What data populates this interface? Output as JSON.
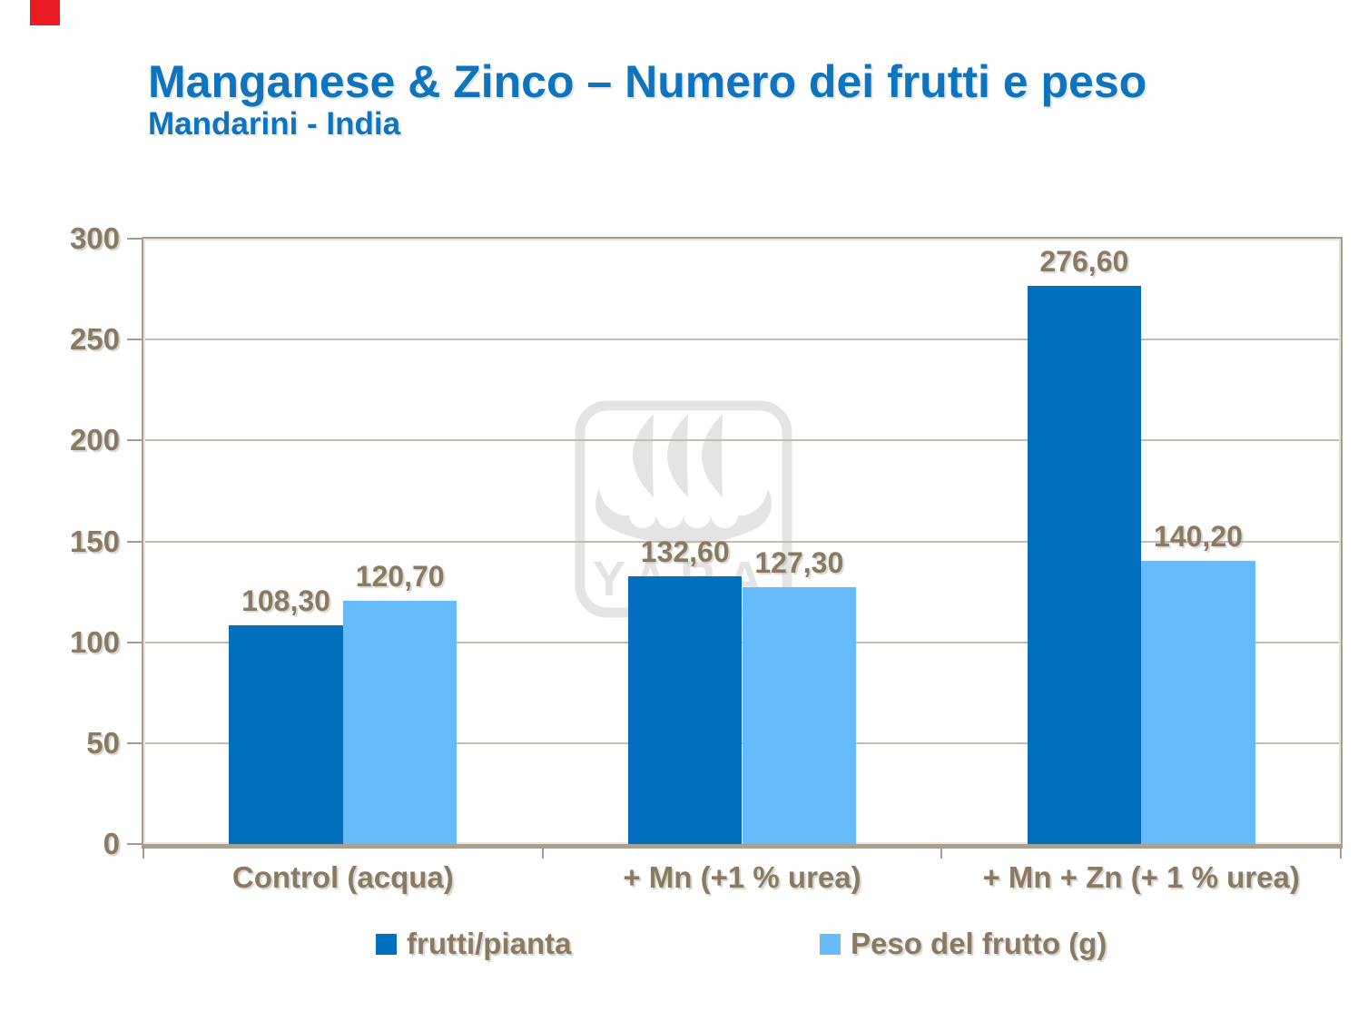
{
  "slide": {
    "title": "Manganese & Zinco – Numero dei frutti e peso",
    "subtitle": "Mandarini - India",
    "title_color": "#0e74be",
    "corner_tag_color": "#ec1c24",
    "text_color": "#8b7a62"
  },
  "watermark": {
    "name": "yara-logo",
    "text": "YARA",
    "color": "#e4e4e4"
  },
  "chart_data": {
    "type": "bar",
    "categories": [
      "Control (acqua)",
      "+ Mn (+1 % urea)",
      "+ Mn + Zn (+ 1 % urea)"
    ],
    "series": [
      {
        "name": "frutti/pianta",
        "color": "#0070be",
        "values": [
          108.3,
          132.6,
          276.6
        ],
        "value_labels": [
          "108,30",
          "132,60",
          "276,60"
        ]
      },
      {
        "name": "Peso del frutto (g)",
        "color": "#67bbf8",
        "values": [
          120.7,
          127.3,
          140.2
        ],
        "value_labels": [
          "120,70",
          "127,30",
          "140,20"
        ]
      }
    ],
    "ylim": [
      0,
      300
    ],
    "yticks": [
      0,
      50,
      100,
      150,
      200,
      250,
      300
    ],
    "grid": true,
    "legend_position": "bottom",
    "gridline_color": "#c6bdb0",
    "frame_color": "#a89c8d",
    "label_color": "#8b7a62"
  }
}
